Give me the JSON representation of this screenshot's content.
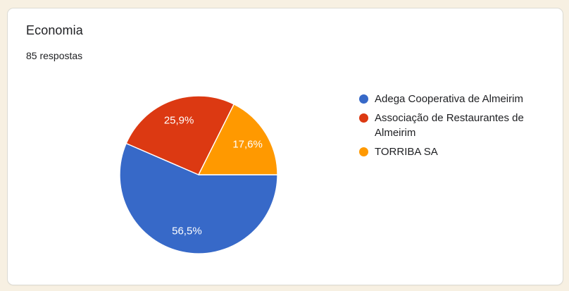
{
  "page": {
    "background_color": "#f7f0e2",
    "card_background": "#ffffff"
  },
  "card": {
    "title": "Economia",
    "subtitle": "85 respostas"
  },
  "chart_data": {
    "type": "pie",
    "title": "Economia",
    "responses_label": "85 respostas",
    "categories": [
      "Adega Cooperativa de Almeirim",
      "Associação de Restaurantes de Almeirim",
      "TORRIBA SA"
    ],
    "values_percent": [
      56.5,
      25.9,
      17.6
    ],
    "slice_labels": [
      "56,5%",
      "25,9%",
      "17,6%"
    ],
    "colors": [
      "#3769c8",
      "#dc3912",
      "#ff9900"
    ],
    "start_angle_deg_cw_from_top": 90,
    "direction": "clockwise",
    "legend_position": "right",
    "slice_label_color": "#ffffff",
    "slice_border_color": "#ffffff"
  },
  "legend": {
    "items": [
      {
        "label": "Adega Cooperativa de Almeirim",
        "color": "#3769c8"
      },
      {
        "label": "Associação de Restaurantes de Almeirim",
        "color": "#dc3912"
      },
      {
        "label": "TORRIBA SA",
        "color": "#ff9900"
      }
    ]
  }
}
